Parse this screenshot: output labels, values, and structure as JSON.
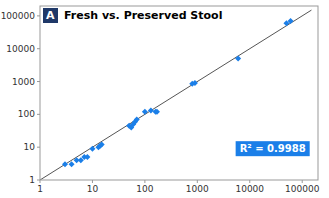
{
  "chart_data": {
    "type": "scatter",
    "title": "Fresh vs. Preserved Stool",
    "annotations": [
      {
        "text": "A",
        "color": "#1F3868"
      },
      {
        "text": "R² = 0.9988",
        "color": "#1B7FE8"
      }
    ],
    "series": [
      {
        "type": "scatter",
        "marker": "diamond",
        "color": "#1B7FE8",
        "x": [
          3,
          4,
          5,
          6,
          7,
          8,
          10,
          13,
          14,
          15,
          50,
          55,
          60,
          65,
          70,
          100,
          130,
          160,
          170,
          800,
          900,
          6000,
          50000,
          60000
        ],
        "values": [
          3,
          3,
          4,
          4,
          5,
          5,
          9,
          10,
          11,
          12,
          45,
          40,
          50,
          60,
          70,
          120,
          130,
          120,
          120,
          850,
          900,
          5000,
          60000,
          70000
        ]
      },
      {
        "type": "line",
        "line_style": "solid",
        "color": "#555555",
        "x": [
          1,
          150000
        ],
        "values": [
          1,
          150000
        ]
      }
    ],
    "log": true,
    "grid": false,
    "xlim": [
      1,
      200000
    ],
    "ylim": [
      1,
      200000
    ],
    "xticks": [
      1,
      10,
      100,
      1000,
      10000,
      100000
    ],
    "yticks": [
      1,
      10,
      100,
      1000,
      10000,
      100000
    ]
  }
}
